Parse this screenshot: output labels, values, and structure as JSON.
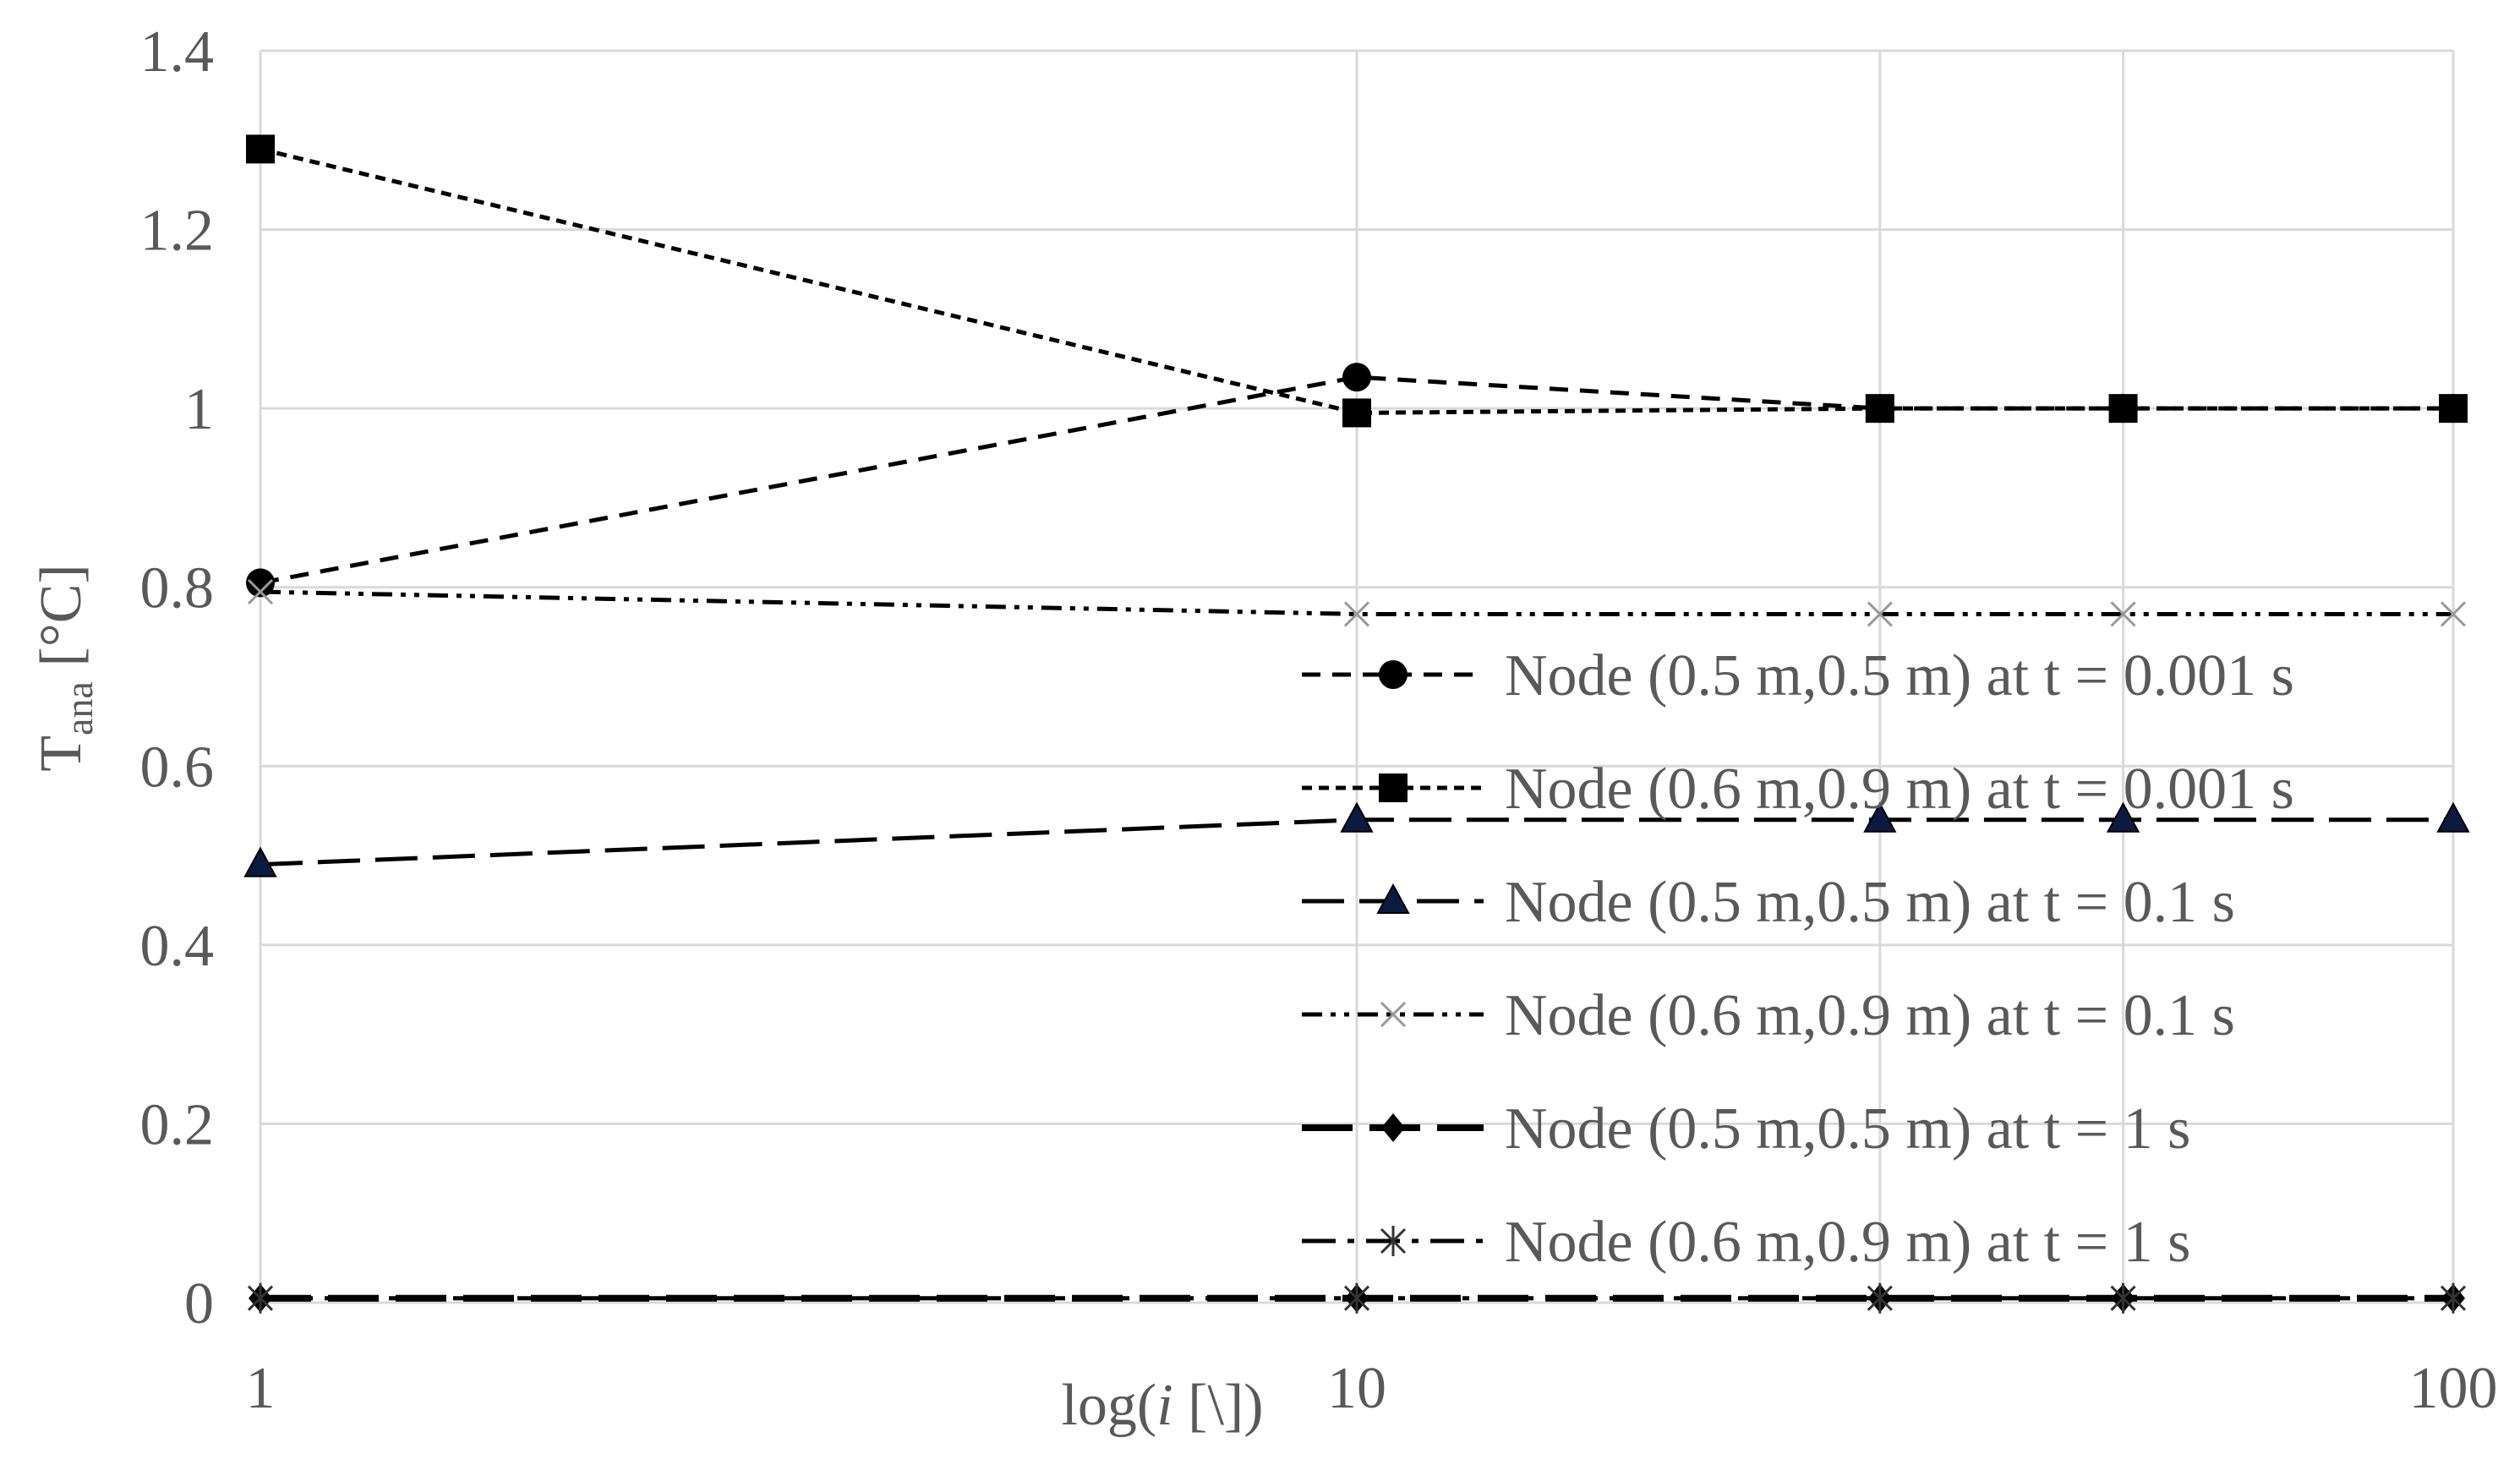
{
  "chart_data": {
    "type": "line",
    "title": "",
    "xlabel_prefix": "log(",
    "xlabel_italic": "i",
    "xlabel_suffix": " [\\])",
    "ylabel_main": "T",
    "ylabel_sub": "ana",
    "ylabel_unit": " [°C]",
    "xscale": "log",
    "xlim": [
      1,
      100
    ],
    "ylim": [
      0,
      1.4
    ],
    "x_ticks": [
      "1",
      "10",
      "100"
    ],
    "y_ticks": [
      "0",
      "0.2",
      "0.4",
      "0.6",
      "0.8",
      "1",
      "1.2",
      "1.4"
    ],
    "grid": true,
    "legend_position": "right",
    "x": [
      1,
      10,
      30,
      50,
      100
    ],
    "series": [
      {
        "name": "Node (0.5 m,0.5 m) at t = 0.001 s",
        "values": [
          0.805,
          1.035,
          1.0,
          1.0,
          1.0
        ],
        "marker": "circle",
        "dash": "short-dash",
        "color": "#000000"
      },
      {
        "name": "Node (0.6 m,0.9 m) at t = 0.001 s",
        "values": [
          1.29,
          0.995,
          1.0,
          1.0,
          1.0
        ],
        "marker": "square",
        "dash": "dot-dash-fine",
        "color": "#000000"
      },
      {
        "name": "Node (0.5 m,0.5 m) at t = 0.1 s",
        "values": [
          0.49,
          0.54,
          0.54,
          0.54,
          0.54
        ],
        "marker": "triangle",
        "dash": "long-dash",
        "color": "#000000",
        "marker_fill": "#0d1a40"
      },
      {
        "name": "Node (0.6 m,0.9 m) at t = 0.1 s",
        "values": [
          0.795,
          0.77,
          0.77,
          0.77,
          0.77
        ],
        "marker": "x",
        "dash": "dash-dot-dot",
        "color": "#000000"
      },
      {
        "name": "Node (0.5 m,0.5 m) at t = 1 s",
        "values": [
          0.005,
          0.005,
          0.005,
          0.005,
          0.005
        ],
        "marker": "diamond",
        "dash": "long-dash-heavy",
        "color": "#000000"
      },
      {
        "name": "Node (0.6 m,0.9 m) at t = 1 s",
        "values": [
          0.005,
          0.005,
          0.005,
          0.005,
          0.005
        ],
        "marker": "asterisk",
        "dash": "long-dash-dot",
        "color": "#000000"
      }
    ],
    "colors": {
      "axis_text": "#595959",
      "grid": "#d9d9d9",
      "series": "#000000"
    }
  }
}
